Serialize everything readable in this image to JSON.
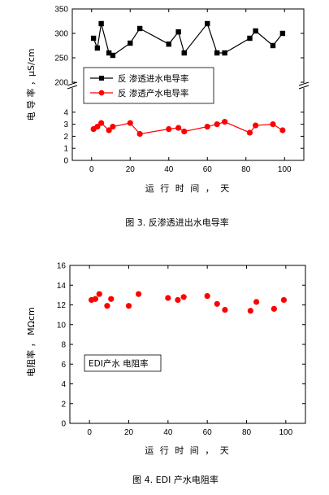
{
  "chart_data": [
    {
      "type": "scatter",
      "caption": "图 3.  反渗透进出水电导率",
      "xlabel": "运 行 时 间 ，  天",
      "ylabel": "电 导 率 ，μS/cm",
      "x_ticks": [
        "0",
        "20",
        "40",
        "60",
        "80",
        "100"
      ],
      "xlim": [
        -10,
        110
      ],
      "broken_axis": true,
      "upper": {
        "ylim": [
          200,
          350
        ],
        "y_ticks": [
          "200",
          "250",
          "300",
          "350"
        ]
      },
      "lower": {
        "ylim": [
          0,
          5
        ],
        "y_ticks": [
          "0",
          "1",
          "2",
          "3",
          "4"
        ]
      },
      "legend_position": "bottom-left",
      "series": [
        {
          "name": "反  渗透进水电导率",
          "color": "#000000",
          "marker": "square",
          "line": true,
          "panel": "upper",
          "x": [
            1,
            3,
            5,
            9,
            11,
            20,
            25,
            40,
            45,
            48,
            60,
            65,
            69,
            82,
            85,
            94,
            99
          ],
          "y": [
            290,
            270,
            320,
            260,
            255,
            280,
            310,
            278,
            303,
            260,
            320,
            260,
            260,
            290,
            305,
            275,
            300
          ]
        },
        {
          "name": "反  渗透产水电导率",
          "color": "#ff0000",
          "marker": "circle",
          "line": true,
          "panel": "lower",
          "x": [
            1,
            3,
            5,
            9,
            11,
            20,
            25,
            40,
            45,
            48,
            60,
            65,
            69,
            82,
            85,
            94,
            99
          ],
          "y": [
            2.6,
            2.8,
            3.1,
            2.5,
            2.8,
            3.1,
            2.2,
            2.6,
            2.7,
            2.4,
            2.8,
            3.0,
            3.2,
            2.3,
            2.9,
            3.0,
            2.5
          ]
        }
      ]
    },
    {
      "type": "scatter",
      "caption": "图 4. EDI 产水电阻率",
      "xlabel": "运 行 时 间 ，  天",
      "ylabel": "电阻率 ，  MΩcm",
      "x_ticks": [
        "0",
        "20",
        "40",
        "60",
        "80",
        "100"
      ],
      "xlim": [
        -10,
        110
      ],
      "ylim": [
        0,
        16
      ],
      "y_ticks": [
        "0",
        "2",
        "4",
        "6",
        "8",
        "10",
        "12",
        "14",
        "16"
      ],
      "legend_position": "lower-left",
      "series": [
        {
          "name": "EDI产水  电阻率",
          "color": "#ff0000",
          "marker": "circle",
          "line": false,
          "legend_marker": false,
          "x": [
            1,
            3,
            5,
            9,
            11,
            20,
            25,
            40,
            45,
            48,
            60,
            65,
            69,
            82,
            85,
            94,
            99
          ],
          "y": [
            12.5,
            12.6,
            13.1,
            11.9,
            12.6,
            11.9,
            13.1,
            12.7,
            12.5,
            12.8,
            12.9,
            12.1,
            11.5,
            11.4,
            12.3,
            11.6,
            12.5
          ]
        }
      ]
    }
  ]
}
